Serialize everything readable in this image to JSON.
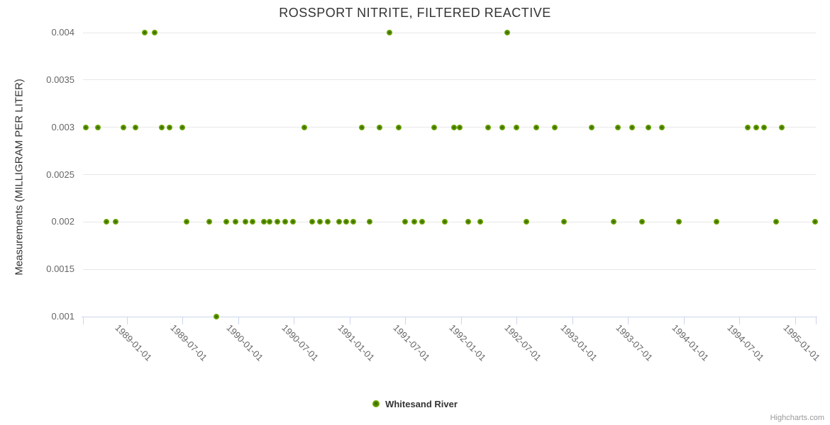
{
  "chart_data": {
    "type": "scatter",
    "title": "ROSSPORT NITRITE, FILTERED REACTIVE",
    "xlabel": "",
    "ylabel": "Measurements (MILLIGRAM PER LITER)",
    "credits": "Highcharts.com",
    "grid": "horizontal",
    "legend_position": "bottom-center",
    "ylim": [
      0.001,
      0.004
    ],
    "xlim": [
      "1988-08-10",
      "1995-03-09"
    ],
    "y_ticks": [
      "0.004",
      "0.0035",
      "0.003",
      "0.0025",
      "0.002",
      "0.0015",
      "0.001"
    ],
    "x_ticks": [
      "1989-01-01",
      "1989-07-01",
      "1990-01-01",
      "1990-07-01",
      "1991-01-01",
      "1991-07-01",
      "1992-01-01",
      "1992-07-01",
      "1993-01-01",
      "1993-07-01",
      "1994-01-01",
      "1994-07-01",
      "1995-01-01"
    ],
    "colors": {
      "marker": "#77b300",
      "marker_mid": "#568c00",
      "marker_core": "#315e00",
      "grid": "#e6e6e6",
      "axis": "#ccd6eb",
      "tick_label": "#666666",
      "text": "#333333",
      "credits": "#999999"
    },
    "series": [
      {
        "name": "Whitesand River",
        "color": "#77b300",
        "points": [
          [
            "1989-03-01",
            0.004
          ],
          [
            "1989-04-01",
            0.004
          ],
          [
            "1991-05-12",
            0.004
          ],
          [
            "1992-06-01",
            0.004
          ],
          [
            "1988-08-19",
            0.003
          ],
          [
            "1988-09-28",
            0.003
          ],
          [
            "1988-12-20",
            0.003
          ],
          [
            "1989-01-29",
            0.003
          ],
          [
            "1989-04-25",
            0.003
          ],
          [
            "1989-05-21",
            0.003
          ],
          [
            "1989-07-01",
            0.003
          ],
          [
            "1990-08-05",
            0.003
          ],
          [
            "1991-02-09",
            0.003
          ],
          [
            "1991-04-09",
            0.003
          ],
          [
            "1991-06-10",
            0.003
          ],
          [
            "1991-10-04",
            0.003
          ],
          [
            "1991-12-10",
            0.003
          ],
          [
            "1991-12-28",
            0.003
          ],
          [
            "1992-03-29",
            0.003
          ],
          [
            "1992-05-15",
            0.003
          ],
          [
            "1992-07-01",
            0.003
          ],
          [
            "1992-09-04",
            0.003
          ],
          [
            "1992-11-03",
            0.003
          ],
          [
            "1993-03-04",
            0.003
          ],
          [
            "1993-05-29",
            0.003
          ],
          [
            "1993-07-15",
            0.003
          ],
          [
            "1993-09-06",
            0.003
          ],
          [
            "1993-10-20",
            0.003
          ],
          [
            "1994-07-29",
            0.003
          ],
          [
            "1994-08-26",
            0.003
          ],
          [
            "1994-09-20",
            0.003
          ],
          [
            "1994-11-18",
            0.003
          ],
          [
            "1988-10-26",
            0.002
          ],
          [
            "1988-11-25",
            0.002
          ],
          [
            "1989-07-15",
            0.002
          ],
          [
            "1989-09-27",
            0.002
          ],
          [
            "1989-11-22",
            0.002
          ],
          [
            "1989-12-23",
            0.002
          ],
          [
            "1990-01-24",
            0.002
          ],
          [
            "1990-02-17",
            0.002
          ],
          [
            "1990-03-26",
            0.002
          ],
          [
            "1990-04-14",
            0.002
          ],
          [
            "1990-05-10",
            0.002
          ],
          [
            "1990-06-04",
            0.002
          ],
          [
            "1990-06-29",
            0.002
          ],
          [
            "1990-08-30",
            0.002
          ],
          [
            "1990-09-25",
            0.002
          ],
          [
            "1990-10-21",
            0.002
          ],
          [
            "1990-11-27",
            0.002
          ],
          [
            "1990-12-20",
            0.002
          ],
          [
            "1991-01-14",
            0.002
          ],
          [
            "1991-03-07",
            0.002
          ],
          [
            "1991-07-01",
            0.002
          ],
          [
            "1991-08-02",
            0.002
          ],
          [
            "1991-08-27",
            0.002
          ],
          [
            "1991-11-10",
            0.002
          ],
          [
            "1992-01-24",
            0.002
          ],
          [
            "1992-03-03",
            0.002
          ],
          [
            "1992-08-02",
            0.002
          ],
          [
            "1992-12-03",
            0.002
          ],
          [
            "1993-05-16",
            0.002
          ],
          [
            "1993-08-16",
            0.002
          ],
          [
            "1993-12-16",
            0.002
          ],
          [
            "1994-04-18",
            0.002
          ],
          [
            "1994-10-30",
            0.002
          ],
          [
            "1995-03-07",
            0.002
          ],
          [
            "1989-10-22",
            0.001
          ]
        ]
      }
    ]
  }
}
